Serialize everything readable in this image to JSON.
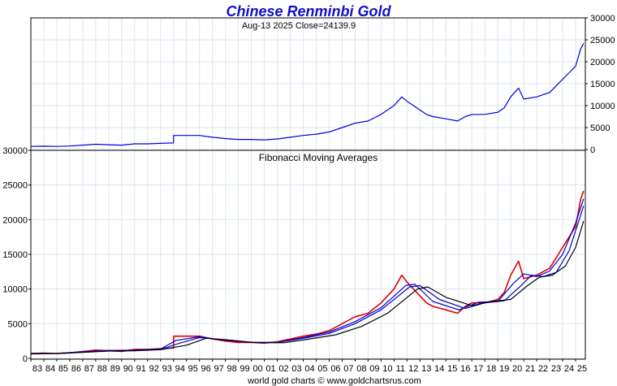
{
  "title": "Chinese Renminbi Gold",
  "subtitle": "Aug-13  2025   Close=24139.9",
  "footer": "world gold charts © www.goldchartsrus.com",
  "colors": {
    "title": "#1010cc",
    "price": "#0000dd",
    "ma_red": "#dd0000",
    "ma_blue": "#0000cc",
    "ma_black": "#000000",
    "grid": "#dde6ee",
    "axis": "#000000"
  },
  "chart_data": [
    {
      "type": "line",
      "title": "Chinese Renminbi Gold",
      "subtitle": "Aug-13  2025   Close=24139.9",
      "y_axis_side": "right",
      "ylim": [
        0,
        30000
      ],
      "yticks": [
        0,
        5000,
        10000,
        15000,
        20000,
        25000,
        30000
      ],
      "ytick_labels": [
        "0",
        "5000",
        "10000",
        "15000",
        "20000",
        "25000",
        "30000"
      ],
      "xlim": [
        1983,
        2025.75
      ],
      "grid": true,
      "series": [
        {
          "color": "#0000dd",
          "x": [
            1983,
            1984,
            1985,
            1986,
            1987,
            1988,
            1989,
            1990,
            1991,
            1992,
            1993,
            1994,
            1994.01,
            1995,
            1996,
            1997,
            1998,
            1999,
            2000,
            2001,
            2002,
            2003,
            2004,
            2005,
            2006,
            2007,
            2008,
            2009,
            2010,
            2011,
            2011.6,
            2012,
            2013,
            2013.5,
            2014,
            2015,
            2015.9,
            2016.5,
            2017,
            2018,
            2019,
            2019.5,
            2020,
            2020.6,
            2021,
            2022,
            2023,
            2024,
            2024.5,
            2025,
            2025.4,
            2025.62
          ],
          "y": [
            700,
            750,
            700,
            800,
            1000,
            1200,
            1100,
            1000,
            1300,
            1300,
            1400,
            1500,
            3200,
            3200,
            3200,
            2800,
            2500,
            2300,
            2300,
            2200,
            2400,
            2800,
            3200,
            3500,
            4000,
            5000,
            6000,
            6500,
            8000,
            10000,
            12000,
            11000,
            9000,
            8000,
            7500,
            7000,
            6500,
            7500,
            8000,
            8000,
            8500,
            9500,
            12000,
            14000,
            11500,
            12000,
            13000,
            16000,
            17500,
            19000,
            23000,
            24139.9
          ]
        }
      ]
    },
    {
      "type": "line",
      "title": "Fibonacci Moving Averages",
      "y_axis_side": "left",
      "ylim": [
        0,
        30000
      ],
      "yticks": [
        0,
        5000,
        10000,
        15000,
        20000,
        25000,
        30000
      ],
      "ytick_labels": [
        "0",
        "5000",
        "10000",
        "15000",
        "20000",
        "25000",
        "30000"
      ],
      "xlim": [
        1983,
        2025.75
      ],
      "grid": true,
      "x_tick_labels": [
        "83",
        "84",
        "85",
        "86",
        "87",
        "88",
        "89",
        "90",
        "91",
        "92",
        "93",
        "94",
        "95",
        "96",
        "97",
        "98",
        "99",
        "00",
        "01",
        "02",
        "03",
        "04",
        "05",
        "06",
        "07",
        "08",
        "09",
        "10",
        "11",
        "12",
        "13",
        "14",
        "15",
        "16",
        "17",
        "18",
        "19",
        "20",
        "21",
        "22",
        "23",
        "24",
        "25"
      ],
      "series": [
        {
          "color": "#dd0000",
          "x": [
            1983,
            1984,
            1985,
            1986,
            1987,
            1988,
            1989,
            1990,
            1991,
            1992,
            1993,
            1994,
            1994.01,
            1995,
            1996,
            1997,
            1998,
            1999,
            2000,
            2001,
            2002,
            2003,
            2004,
            2005,
            2006,
            2007,
            2008,
            2009,
            2010,
            2011,
            2011.6,
            2012,
            2013,
            2013.5,
            2014,
            2015,
            2015.9,
            2016.5,
            2017,
            2018,
            2019,
            2019.5,
            2020,
            2020.6,
            2021,
            2022,
            2023,
            2024,
            2024.5,
            2025,
            2025.4,
            2025.62
          ],
          "y": [
            700,
            750,
            700,
            800,
            1000,
            1200,
            1100,
            1000,
            1300,
            1300,
            1400,
            1500,
            3200,
            3200,
            3200,
            2800,
            2500,
            2300,
            2300,
            2200,
            2400,
            2800,
            3200,
            3500,
            4000,
            5000,
            6000,
            6500,
            8000,
            10000,
            12000,
            11000,
            9000,
            8000,
            7500,
            7000,
            6500,
            7500,
            8000,
            8000,
            8500,
            9500,
            12000,
            14000,
            11500,
            12000,
            13000,
            16000,
            17500,
            19000,
            23000,
            24139.9
          ]
        },
        {
          "color": "#0000cc",
          "x": [
            1983,
            1985,
            1987,
            1989,
            1991,
            1993,
            1994.2,
            1996,
            1998,
            2000,
            2002,
            2004,
            2006,
            2008,
            2010,
            2011.9,
            2012.6,
            2014,
            2016,
            2017.5,
            2019,
            2020.2,
            2021,
            2022,
            2023,
            2024,
            2025,
            2025.62
          ],
          "y": [
            700,
            720,
            950,
            1150,
            1200,
            1350,
            2600,
            3100,
            2600,
            2300,
            2300,
            3000,
            3800,
            5300,
            7300,
            10500,
            10700,
            8200,
            7000,
            8100,
            8200,
            10800,
            12200,
            11800,
            12600,
            15000,
            19500,
            23000
          ]
        },
        {
          "color": "#0000cc",
          "x": [
            1983,
            1985,
            1987,
            1989,
            1991,
            1993,
            1994.5,
            1996,
            1998,
            2000,
            2002,
            2004,
            2006,
            2008,
            2010,
            2012.2,
            2013,
            2014.5,
            2016.5,
            2018,
            2019.5,
            2020.8,
            2021.6,
            2022.5,
            2023.5,
            2024.5,
            2025.62
          ],
          "y": [
            700,
            710,
            900,
            1100,
            1150,
            1300,
            2200,
            3000,
            2700,
            2300,
            2300,
            2900,
            3600,
            5000,
            7000,
            10300,
            10500,
            8500,
            7200,
            8000,
            8300,
            10500,
            12000,
            11800,
            12400,
            15500,
            22000
          ]
        },
        {
          "color": "#000000",
          "x": [
            1983,
            1985,
            1987,
            1989,
            1991,
            1993,
            1995,
            1996.5,
            1998.5,
            2000.5,
            2002.5,
            2004.5,
            2006.5,
            2008.5,
            2010.5,
            2012.8,
            2013.6,
            2015,
            2017,
            2018.5,
            2020,
            2021.3,
            2022.2,
            2023.2,
            2024.2,
            2025,
            2025.62
          ],
          "y": [
            650,
            700,
            850,
            1050,
            1100,
            1250,
            1900,
            2900,
            2600,
            2250,
            2250,
            2800,
            3400,
            4600,
            6500,
            10000,
            10300,
            8800,
            7600,
            8200,
            8500,
            10500,
            11700,
            12000,
            13300,
            16000,
            19800
          ]
        }
      ]
    }
  ]
}
